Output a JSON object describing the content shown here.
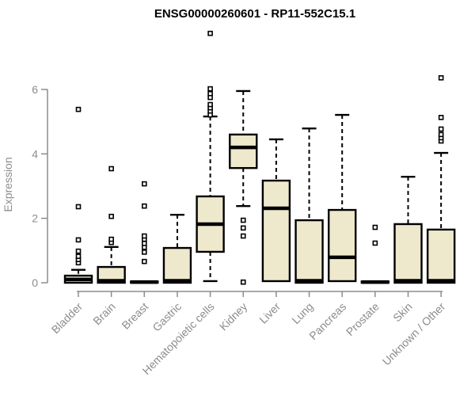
{
  "chart_data": {
    "type": "boxplot",
    "title": "ENSG00000260601 - RP11-552C15.1",
    "ylabel": "Expression",
    "xlabel": "",
    "ylim": [
      0,
      6
    ],
    "yticks": [
      0,
      2,
      4,
      6
    ],
    "grid": false,
    "legend": false,
    "colors": {
      "box_fill": "#EEE8CD",
      "box_stroke": "#000000",
      "axis_color": "#8C8C8C",
      "title_color": "#000000",
      "background": "#FFFFFF"
    },
    "categories": [
      "Bladder",
      "Brain",
      "Breast",
      "Gastric",
      "Hematopoietic cells",
      "Kidney",
      "Liver",
      "Lung",
      "Pancreas",
      "Prostate",
      "Skin",
      "Unknown / Other"
    ],
    "boxes": [
      {
        "category": "Bladder",
        "whisker_low": 0,
        "q1": 0,
        "median": 0.1,
        "q3": 0.22,
        "whisker_high": 0.4,
        "outliers": [
          0.62,
          0.72,
          0.82,
          0.98,
          1.33,
          2.36,
          5.38
        ]
      },
      {
        "category": "Brain",
        "whisker_low": 0,
        "q1": 0,
        "median": 0.06,
        "q3": 0.49,
        "whisker_high": 1.11,
        "outliers": [
          1.25,
          1.35,
          2.06,
          3.54
        ]
      },
      {
        "category": "Breast",
        "whisker_low": 0,
        "q1": 0,
        "median": 0.02,
        "q3": 0.04,
        "whisker_high": 0.04,
        "outliers": [
          0.66,
          0.95,
          1.1,
          1.22,
          1.35,
          1.45,
          2.38,
          3.07
        ]
      },
      {
        "category": "Gastric",
        "whisker_low": 0,
        "q1": 0,
        "median": 0.06,
        "q3": 1.08,
        "whisker_high": 2.11,
        "outliers": []
      },
      {
        "category": "Hematopoietic cells",
        "whisker_low": 0.05,
        "q1": 0.96,
        "median": 1.82,
        "q3": 2.68,
        "whisker_high": 5.16,
        "outliers": [
          5.21,
          5.33,
          5.43,
          5.53,
          5.75,
          5.87,
          6.02,
          7.74
        ]
      },
      {
        "category": "Kidney",
        "whisker_low": 2.38,
        "q1": 3.56,
        "median": 4.2,
        "q3": 4.6,
        "whisker_high": 5.95,
        "outliers": [
          0.02,
          1.45,
          1.7,
          1.94
        ]
      },
      {
        "category": "Liver",
        "whisker_low": 0.05,
        "q1": 0.05,
        "median": 2.31,
        "q3": 3.17,
        "whisker_high": 4.45,
        "outliers": []
      },
      {
        "category": "Lung",
        "whisker_low": 0,
        "q1": 0,
        "median": 0.06,
        "q3": 1.94,
        "whisker_high": 4.79,
        "outliers": []
      },
      {
        "category": "Pancreas",
        "whisker_low": 0.05,
        "q1": 0.05,
        "median": 0.79,
        "q3": 2.26,
        "whisker_high": 5.21,
        "outliers": []
      },
      {
        "category": "Prostate",
        "whisker_low": 0,
        "q1": 0,
        "median": 0.02,
        "q3": 0.04,
        "whisker_high": 0.04,
        "outliers": [
          1.23,
          1.72
        ]
      },
      {
        "category": "Skin",
        "whisker_low": 0,
        "q1": 0,
        "median": 0.06,
        "q3": 1.82,
        "whisker_high": 3.29,
        "outliers": []
      },
      {
        "category": "Unknown / Other",
        "whisker_low": 0,
        "q1": 0,
        "median": 0.06,
        "q3": 1.65,
        "whisker_high": 4.03,
        "outliers": [
          4.4,
          4.5,
          4.6,
          4.77,
          5.13,
          6.36
        ]
      }
    ]
  }
}
